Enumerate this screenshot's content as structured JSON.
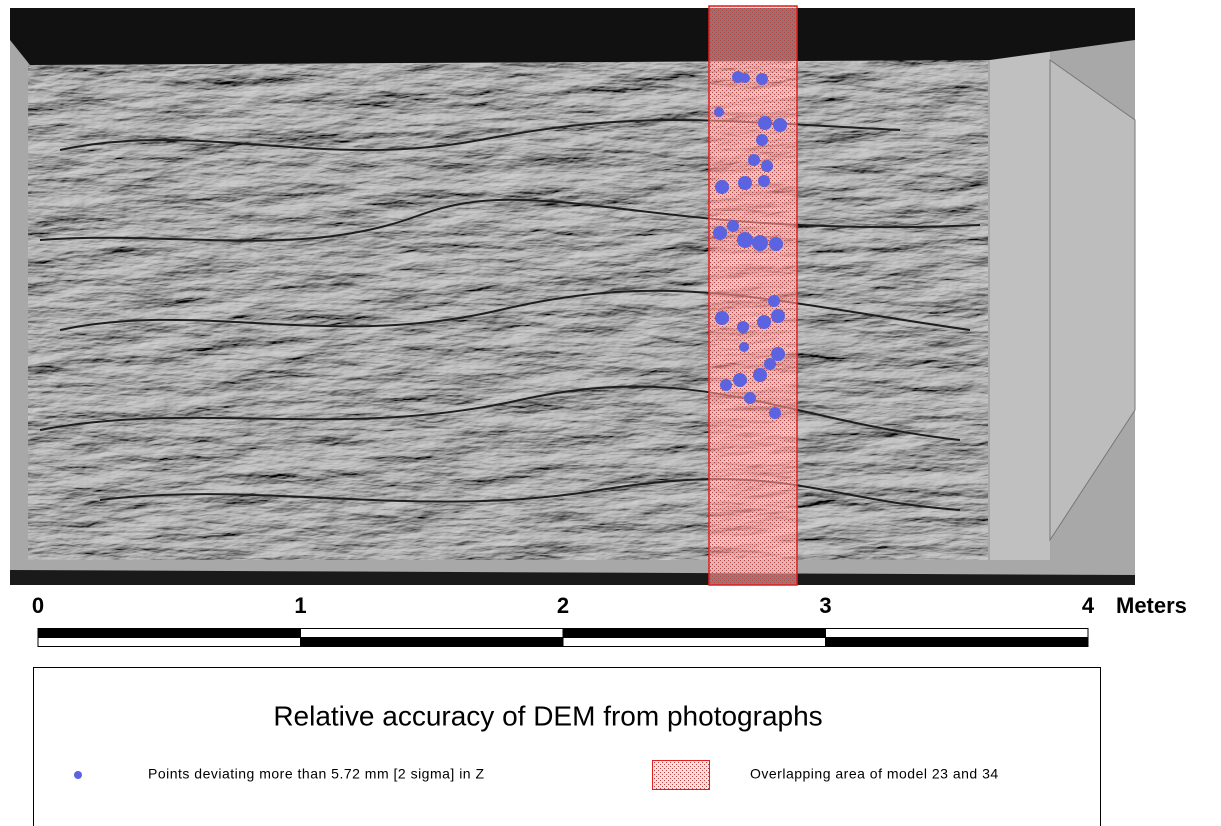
{
  "map": {
    "title": "Relative accuracy of DEM from photographs",
    "legend": [
      {
        "label": "Points deviating more than 5.72 mm [2 sigma] in Z"
      },
      {
        "label": "Overlapping area of model 23 and 34"
      }
    ]
  },
  "scale_bar": {
    "ticks": [
      0,
      1,
      2,
      3,
      4
    ],
    "unit": "Meters"
  }
}
